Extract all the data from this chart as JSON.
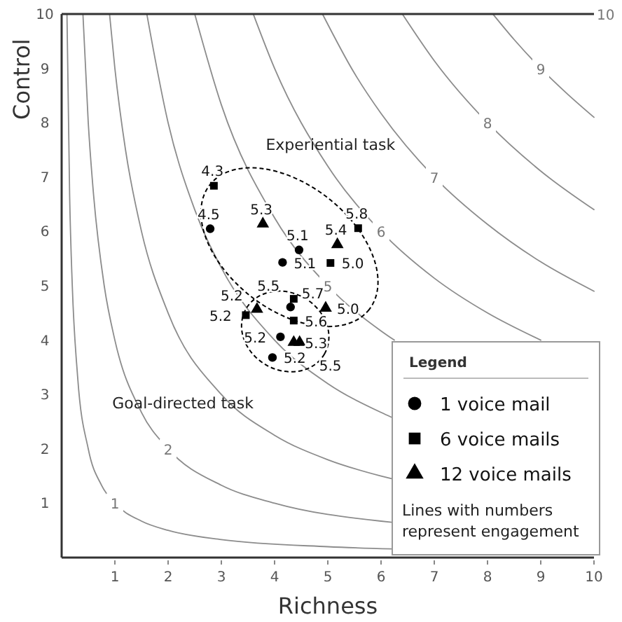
{
  "chart_data": {
    "type": "scatter",
    "xlabel": "Richness",
    "ylabel": "Control",
    "xlim": [
      0,
      10
    ],
    "ylim": [
      0,
      10
    ],
    "xticks": [
      1,
      2,
      3,
      4,
      5,
      6,
      7,
      8,
      9,
      10
    ],
    "yticks": [
      1,
      2,
      3,
      4,
      5,
      6,
      7,
      8,
      9,
      10
    ],
    "grid": false,
    "legend": "bottom right",
    "legend_title": "Legend",
    "annotations": [
      "Experiential task",
      "Goal-directed task",
      "Lines with numbers represent engagement",
      "10",
      {
        "text": "4.5",
        "x": 2.79,
        "y": 6.05
      },
      {
        "text": "5.1",
        "x": 4.46,
        "y": 5.66
      },
      {
        "text": "5.1",
        "x": 4.15,
        "y": 5.43
      },
      {
        "text": "5.7",
        "x": 4.3,
        "y": 4.61
      },
      {
        "text": "5.2",
        "x": 4.11,
        "y": 4.06
      },
      {
        "text": "5.2",
        "x": 3.96,
        "y": 3.68
      },
      {
        "text": "4.3",
        "x": 2.86,
        "y": 6.84
      },
      {
        "text": "5.8",
        "x": 5.57,
        "y": 6.06
      },
      {
        "text": "5.0",
        "x": 5.05,
        "y": 5.42
      },
      {
        "text": "5.5",
        "x": 4.36,
        "y": 4.76
      },
      {
        "text": "5.6",
        "x": 4.36,
        "y": 4.36
      },
      {
        "text": "5.2",
        "x": 3.46,
        "y": 4.46
      },
      {
        "text": "5.3",
        "x": 3.78,
        "y": 6.14
      },
      {
        "text": "5.4",
        "x": 5.18,
        "y": 5.76
      },
      {
        "text": "5.0",
        "x": 4.96,
        "y": 4.59
      },
      {
        "text": "5.2",
        "x": 3.67,
        "y": 4.57
      },
      {
        "text": "5.3",
        "x": 4.36,
        "y": 3.96
      },
      {
        "text": "5.5",
        "x": 4.47,
        "y": 3.96
      }
    ],
    "series": [
      {
        "name": "1",
        "type": "line",
        "color": "#8c8c8c",
        "marker": "none",
        "x": [
          0.1,
          0.15,
          0.2,
          0.3,
          0.5,
          0.75,
          1,
          1.5,
          2,
          3,
          5,
          6.2
        ],
        "values": [
          10,
          6.67,
          5,
          3.33,
          2,
          1.33,
          1,
          0.67,
          0.5,
          0.33,
          0.2,
          0.16
        ]
      },
      {
        "name": "2",
        "type": "line",
        "color": "#8c8c8c",
        "marker": "none",
        "x": [
          0.4,
          0.5,
          0.6,
          0.8,
          1,
          1.5,
          2,
          3,
          4,
          6,
          6.2
        ],
        "values": [
          10,
          8,
          6.67,
          5,
          4,
          2.67,
          2,
          1.33,
          1,
          0.67,
          0.65
        ]
      },
      {
        "type": "line",
        "color": "#8c8c8c",
        "marker": "none",
        "x": [
          0.9,
          1,
          1.2,
          1.5,
          2,
          3,
          4,
          5,
          6,
          6.2
        ],
        "values": [
          10,
          9,
          7.5,
          6,
          4.5,
          3,
          2.25,
          1.8,
          1.5,
          1.45
        ]
      },
      {
        "type": "line",
        "color": "#8c8c8c",
        "marker": "none",
        "x": [
          1.6,
          2,
          2.5,
          3,
          4,
          5,
          6,
          6.2
        ],
        "values": [
          10,
          8,
          6.4,
          5.33,
          4,
          3.2,
          2.67,
          2.58
        ]
      },
      {
        "name": "5",
        "type": "line",
        "color": "#8c8c8c",
        "marker": "none",
        "x": [
          2.5,
          3,
          4,
          5,
          6,
          6.25
        ],
        "values": [
          10,
          8.33,
          6.25,
          5,
          4.17,
          4
        ]
      },
      {
        "name": "6",
        "type": "line",
        "color": "#8c8c8c",
        "marker": "none",
        "x": [
          3.6,
          4,
          5,
          6,
          7,
          8,
          9
        ],
        "values": [
          10,
          9,
          7.2,
          6,
          5.14,
          4.5,
          4
        ]
      },
      {
        "name": "7",
        "type": "line",
        "color": "#8c8c8c",
        "marker": "none",
        "x": [
          4.9,
          5.5,
          6,
          7,
          8,
          9,
          10
        ],
        "values": [
          10,
          8.91,
          8.17,
          7,
          6.13,
          5.44,
          4.9
        ]
      },
      {
        "name": "8",
        "type": "line",
        "color": "#8c8c8c",
        "marker": "none",
        "x": [
          6.4,
          7,
          8,
          9,
          10
        ],
        "values": [
          10,
          9.14,
          8,
          7.11,
          6.4
        ]
      },
      {
        "name": "9",
        "type": "line",
        "color": "#8c8c8c",
        "marker": "none",
        "x": [
          8.1,
          8.5,
          9,
          9.5,
          10
        ],
        "values": [
          10,
          9.53,
          9,
          8.53,
          8.1
        ]
      },
      {
        "name": "1 voice mail",
        "color": "#000000",
        "marker": "circle",
        "x": [
          2.79,
          4.46,
          4.15,
          4.3,
          4.11,
          3.96
        ],
        "values": [
          6.05,
          5.66,
          5.43,
          4.61,
          4.06,
          3.68
        ]
      },
      {
        "name": "6 voice mails",
        "color": "#000000",
        "marker": "square",
        "x": [
          2.86,
          5.57,
          5.05,
          4.36,
          4.36,
          3.46
        ],
        "values": [
          6.84,
          6.06,
          5.42,
          4.76,
          4.36,
          4.46
        ]
      },
      {
        "name": "12 voice mails",
        "color": "#000000",
        "marker": "triangle",
        "x": [
          3.78,
          5.18,
          4.96,
          3.67,
          4.36,
          4.47
        ],
        "values": [
          6.14,
          5.76,
          4.59,
          4.57,
          3.96,
          3.96
        ]
      }
    ]
  }
}
